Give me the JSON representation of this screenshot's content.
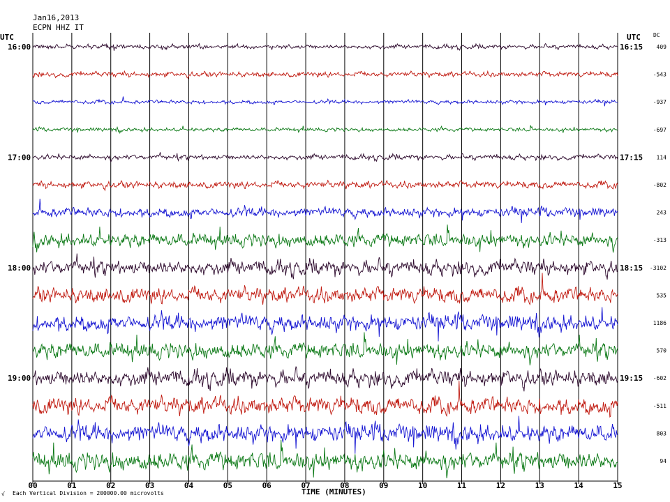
{
  "header": {
    "date": "Jan16,2013",
    "station": "ECPN HHZ IT"
  },
  "chart_data": {
    "type": "line",
    "title": "Jan16,2013 ECPN HHZ IT",
    "xlabel": "TIME (MINUTES)",
    "xlim": [
      0,
      15
    ],
    "x_ticks": [
      "00",
      "01",
      "02",
      "03",
      "04",
      "05",
      "06",
      "07",
      "08",
      "09",
      "10",
      "11",
      "12",
      "13",
      "14",
      "15"
    ],
    "left_axis_label": "UTC",
    "right_axis_label": "UTC",
    "dc_header": "DC",
    "scale_note": "Each Vertical Division = 200000.00 microvolts",
    "corner_mark": "√",
    "colors": [
      "#2d0a2d",
      "#c01a10",
      "#1414d2",
      "#0a7814"
    ],
    "rows": [
      {
        "left_label": "16:00",
        "right_label": "16:15",
        "dc": "409",
        "amplitude": 0.25
      },
      {
        "left_label": "",
        "right_label": "",
        "dc": "-543",
        "amplitude": 0.3
      },
      {
        "left_label": "",
        "right_label": "",
        "dc": "-937",
        "amplitude": 0.22
      },
      {
        "left_label": "",
        "right_label": "",
        "dc": "-697",
        "amplitude": 0.22
      },
      {
        "left_label": "17:00",
        "right_label": "17:15",
        "dc": "114",
        "amplitude": 0.3
      },
      {
        "left_label": "",
        "right_label": "",
        "dc": "-802",
        "amplitude": 0.4
      },
      {
        "left_label": "",
        "right_label": "",
        "dc": "243",
        "amplitude": 0.55
      },
      {
        "left_label": "",
        "right_label": "",
        "dc": "-313",
        "amplitude": 0.8
      },
      {
        "left_label": "18:00",
        "right_label": "18:15",
        "dc": "-3102",
        "amplitude": 0.85
      },
      {
        "left_label": "",
        "right_label": "",
        "dc": "535",
        "amplitude": 0.9
      },
      {
        "left_label": "",
        "right_label": "",
        "dc": "1186",
        "amplitude": 0.95
      },
      {
        "left_label": "",
        "right_label": "",
        "dc": "570",
        "amplitude": 0.95
      },
      {
        "left_label": "19:00",
        "right_label": "19:15",
        "dc": "-602",
        "amplitude": 0.95
      },
      {
        "left_label": "",
        "right_label": "",
        "dc": "-511",
        "amplitude": 1.0
      },
      {
        "left_label": "",
        "right_label": "",
        "dc": "803",
        "amplitude": 1.05
      },
      {
        "left_label": "",
        "right_label": "",
        "dc": "94",
        "amplitude": 1.1
      }
    ]
  }
}
